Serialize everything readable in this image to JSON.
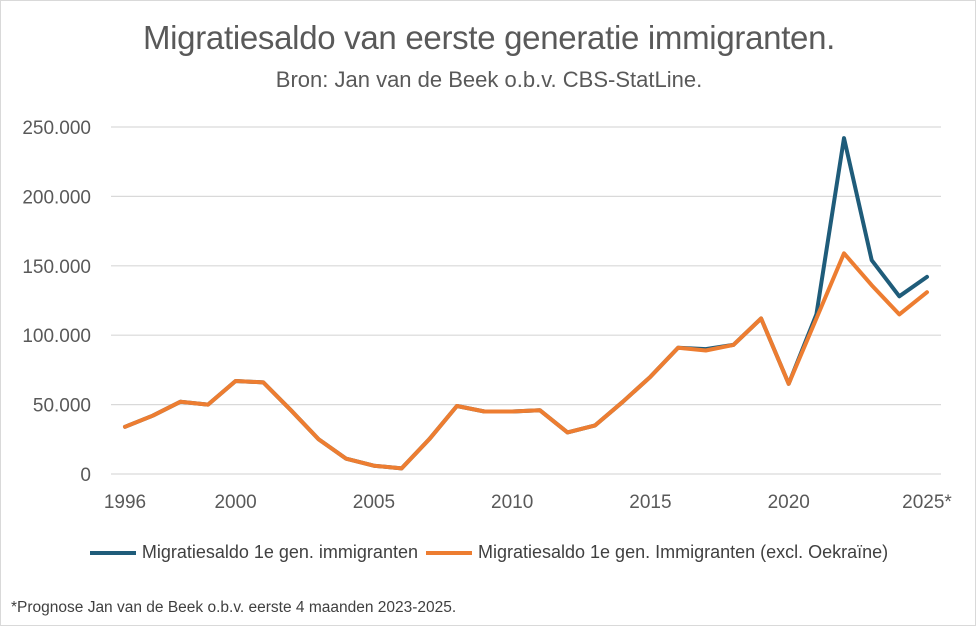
{
  "chart_data": {
    "type": "line",
    "title": "Migratiesaldo van eerste generatie immigranten.",
    "subtitle": "Bron: Jan van de Beek o.b.v. CBS-StatLine.",
    "x": [
      1996,
      1997,
      1998,
      1999,
      2000,
      2001,
      2002,
      2003,
      2004,
      2005,
      2006,
      2007,
      2008,
      2009,
      2010,
      2011,
      2012,
      2013,
      2014,
      2015,
      2016,
      2017,
      2018,
      2019,
      2020,
      2021,
      2022,
      2023,
      2024,
      2025
    ],
    "x_tick_labels": [
      "1996",
      "2000",
      "2005",
      "2010",
      "2015",
      "2020",
      "2025*"
    ],
    "x_tick_values": [
      1996,
      2000,
      2005,
      2010,
      2015,
      2020,
      2025
    ],
    "ylim": [
      0,
      250000
    ],
    "y_ticks": [
      0,
      50000,
      100000,
      150000,
      200000,
      250000
    ],
    "y_tick_labels": [
      "0",
      "50.000",
      "100.000",
      "150.000",
      "200.000",
      "250.000"
    ],
    "grid": true,
    "legend_position": "bottom",
    "series": [
      {
        "name": "Migratiesaldo 1e gen. immigranten",
        "color": "#1f5c7a",
        "values": [
          34000,
          42000,
          52000,
          50000,
          67000,
          66000,
          46000,
          25000,
          11000,
          6000,
          4000,
          25000,
          49000,
          45000,
          45000,
          46000,
          30000,
          35000,
          52000,
          70000,
          91000,
          90000,
          93000,
          112000,
          65000,
          115000,
          242000,
          154000,
          128000,
          142000
        ]
      },
      {
        "name": "Migratiesaldo 1e gen. Immigranten (excl. Oekraïne)",
        "color": "#ed7d31",
        "values": [
          34000,
          42000,
          52000,
          50000,
          67000,
          66000,
          46000,
          25000,
          11000,
          6000,
          4000,
          25000,
          49000,
          45000,
          45000,
          46000,
          30000,
          35000,
          52000,
          70000,
          91000,
          89000,
          93000,
          112000,
          65000,
          112000,
          159000,
          136000,
          115000,
          131000
        ]
      }
    ],
    "footnote": "*Prognose Jan van de Beek o.b.v. eerste 4 maanden 2023-2025."
  }
}
